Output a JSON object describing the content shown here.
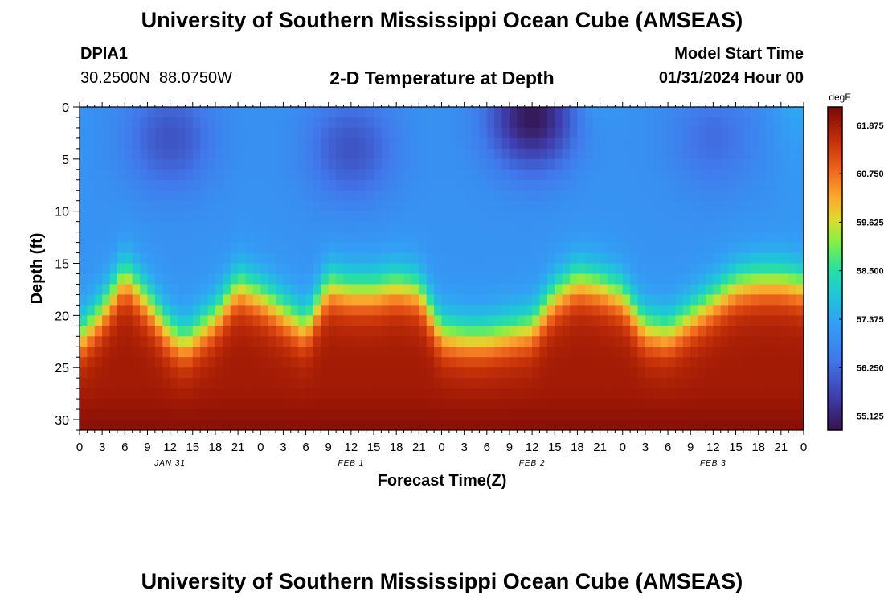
{
  "header": {
    "title": "University of Southern Mississippi Ocean Cube (AMSEAS)",
    "station_id": "DPIA1",
    "coordinates": "30.2500N  88.0750W",
    "plot_title": "2-D Temperature at Depth",
    "model_start_label": "Model Start Time",
    "model_start_value": "01/31/2024 Hour 00"
  },
  "footer": {
    "title": "University of Southern Mississippi Ocean Cube (AMSEAS)"
  },
  "chart_data": {
    "type": "heatmap",
    "title": "2-D Temperature at Depth",
    "xlabel": "Forecast Time(Z)",
    "ylabel": "Depth (ft)",
    "x_hours_range": [
      0,
      96
    ],
    "ylim": [
      0,
      31
    ],
    "x_ticks": [
      "0",
      "3",
      "6",
      "9",
      "12",
      "15",
      "18",
      "21",
      "0",
      "3",
      "6",
      "9",
      "12",
      "15",
      "18",
      "21",
      "0",
      "3",
      "6",
      "9",
      "12",
      "15",
      "18",
      "21",
      "0",
      "3",
      "6",
      "9",
      "12",
      "15",
      "18",
      "21",
      "0"
    ],
    "date_labels": [
      {
        "text": "JAN 31",
        "hour": 12
      },
      {
        "text": "FEB 1",
        "hour": 36
      },
      {
        "text": "FEB 2",
        "hour": 60
      },
      {
        "text": "FEB 3",
        "hour": 84
      }
    ],
    "y_ticks": [
      0,
      5,
      10,
      15,
      20,
      25,
      30
    ],
    "colorbar": {
      "unit": "degF",
      "min": 54.8,
      "max": 62.3,
      "ticks": [
        "61.875",
        "60.750",
        "59.625",
        "58.500",
        "57.375",
        "56.250",
        "55.125"
      ],
      "tick_values": [
        61.875,
        60.75,
        59.625,
        58.5,
        57.375,
        56.25,
        55.125
      ]
    },
    "thermocline_depth_ft": {
      "hours": [
        0,
        3,
        6,
        9,
        12,
        14,
        18,
        21,
        24,
        27,
        30,
        33,
        36,
        39,
        42,
        45,
        48,
        51,
        54,
        57,
        60,
        63,
        66,
        69,
        72,
        75,
        78,
        81,
        84,
        87,
        90,
        93,
        96
      ],
      "depth": [
        22,
        19.5,
        16,
        18.5,
        21.5,
        22.5,
        20,
        17,
        18,
        19.5,
        21,
        17,
        17.5,
        17.5,
        17,
        17.5,
        21.5,
        22,
        22,
        21.5,
        21,
        18,
        16.5,
        17,
        18,
        21,
        21.5,
        20,
        18.5,
        17,
        16.5,
        16.5,
        17
      ]
    },
    "cold_cores": [
      {
        "hour": 12,
        "depth_ft": 3,
        "temp_f": 55.9
      },
      {
        "hour": 36,
        "depth_ft": 4,
        "temp_f": 55.9
      },
      {
        "hour": 60,
        "depth_ft": 1,
        "temp_f": 54.9
      },
      {
        "hour": 84,
        "depth_ft": 3,
        "temp_f": 56.3
      }
    ],
    "surface_temp_f": 57.0,
    "bottom_temp_f": 61.9
  }
}
